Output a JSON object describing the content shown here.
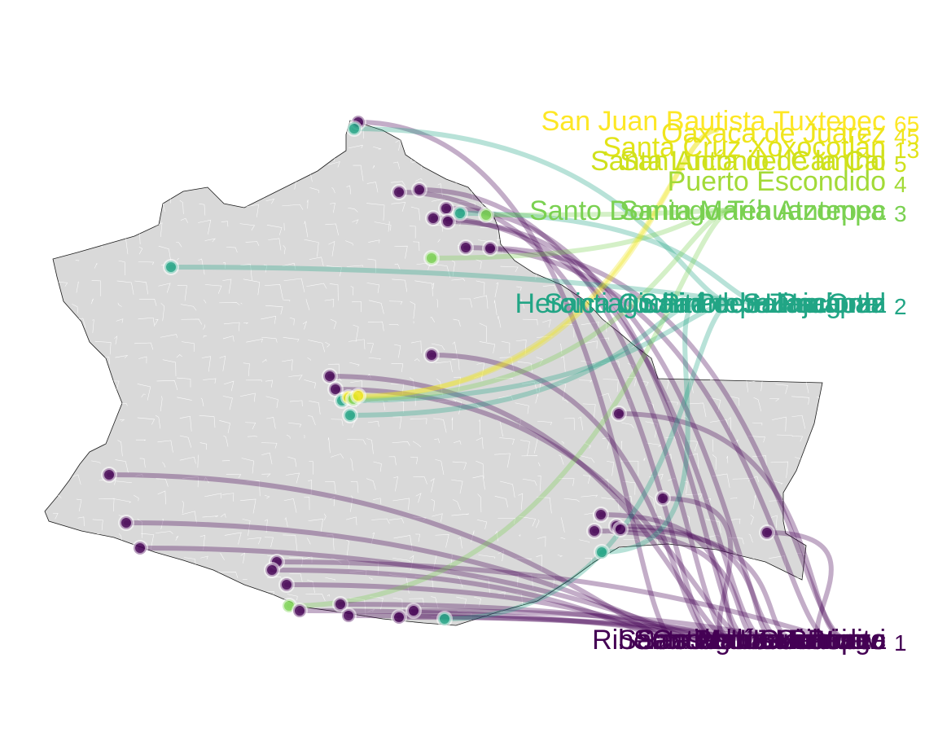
{
  "chart_data": {
    "type": "flow-map",
    "title": "",
    "xlabel": "",
    "ylabel": "",
    "legend": "none",
    "grid": false,
    "colors": {
      "count_1": "#440154",
      "count_2": "#21a585",
      "count_3": "#7ad151",
      "count_4": "#a2da37",
      "count_5": "#cfe11c",
      "count_13": "#e2e418",
      "count_45": "#f0e51d",
      "count_65": "#fde725",
      "map_fill": "#d9d9d9",
      "map_border": "#1a1a1a",
      "municipal_lines": "#ffffff"
    },
    "destinations": [
      {
        "name": "San Juan Bautista Tuxtepec",
        "count": "65",
        "color": "#fde725"
      },
      {
        "name": "Oaxaca de Juárez",
        "count": "45",
        "color": "#f0e51d"
      },
      {
        "name": "Santa Cruz Xoxocotlán",
        "count": "13",
        "color": "#e2e418"
      },
      {
        "name": "San Antonio de la Cal",
        "count": "5",
        "color": "#cfe11c"
      },
      {
        "name": "Santa Lucía del Camino",
        "count": "5",
        "color": "#cfe11c"
      },
      {
        "name": "Puerto Escondido",
        "count": "4",
        "color": "#a2da37"
      },
      {
        "name": "Santo Domingo Tehuantepec",
        "count": "3",
        "color": "#7ad151"
      },
      {
        "name": "Santa María Atzompa",
        "count": "3",
        "color": "#7ad151"
      },
      {
        "name": "Heroica Ciudad de Huajuapan",
        "count": "2",
        "color": "#21a585"
      },
      {
        "name": "Salina Cruz",
        "count": "2",
        "color": "#21a585"
      },
      {
        "name": "Juchitán de Zaragoza",
        "count": "2",
        "color": "#21a585"
      },
      {
        "name": "San Pedro Pochutla",
        "count": "2",
        "color": "#21a585"
      },
      {
        "name": "Santiago Pinotepa Nacional",
        "count": "2",
        "color": "#21a585"
      },
      {
        "name": "Riberas del Usumacinta",
        "count": "1",
        "color": "#440154"
      },
      {
        "name": "Casas de Santiago",
        "count": "1",
        "color": "#440154"
      },
      {
        "name": "San Juan Guichicovi",
        "count": "1",
        "color": "#440154"
      },
      {
        "name": "Santiago Jamiltepec",
        "count": "1",
        "color": "#440154"
      },
      {
        "name": "San Pedro Mixtepec",
        "count": "1",
        "color": "#440154"
      },
      {
        "name": "Santa María Huatulco",
        "count": "1",
        "color": "#440154"
      },
      {
        "name": "Matías Romero",
        "count": "1",
        "color": "#440154"
      },
      {
        "name": "Loma Bonita",
        "count": "1",
        "color": "#440154"
      }
    ]
  }
}
